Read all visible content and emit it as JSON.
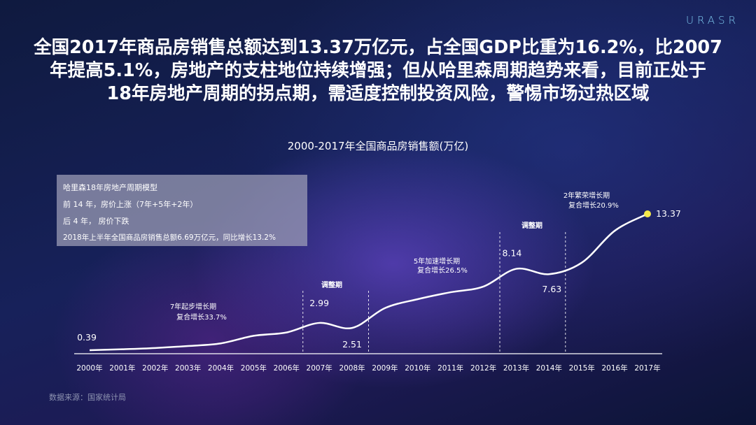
{
  "brand": "URASR",
  "headline": {
    "lines": [
      "全国2017年商品房销售总额达到13.37万亿元，占全国GDP比重为16.2%，比2007",
      "年提高5.1%，房地产的支柱地位持续增强；但从哈里森周期趋势来看，目前正处于",
      "18年房地产周期的拐点期，需适度控制投资风险，警惕市场过热区域"
    ]
  },
  "infobox": {
    "line1": "哈里森18年房地产周期模型",
    "line2": "前 14 年，房价上涨（7年+5年+2年）",
    "line3": "后 4 年， 房价下跌",
    "line4": "2018年上半年全国商品房销售总额6.69万亿元，同比增长13.2%"
  },
  "source": "数据来源：国家统计局",
  "colors": {
    "line": "#ffffff",
    "highlight_point": "#f5e94a",
    "axis": "#ffffff"
  },
  "chart_data": {
    "type": "line",
    "title": "2000-2017年全国商品房销售额(万亿)",
    "categories": [
      "2000年",
      "2001年",
      "2002年",
      "2003年",
      "2004年",
      "2005年",
      "2006年",
      "2007年",
      "2008年",
      "2009年",
      "2010年",
      "2011年",
      "2012年",
      "2013年",
      "2014年",
      "2015年",
      "2016年",
      "2017年"
    ],
    "values": [
      0.39,
      0.48,
      0.6,
      0.79,
      1.04,
      1.76,
      2.08,
      2.99,
      2.51,
      4.4,
      5.25,
      5.91,
      6.45,
      8.14,
      7.63,
      8.73,
      11.76,
      13.37
    ],
    "labeled_points": [
      {
        "year": "2000年",
        "label": "0.39"
      },
      {
        "year": "2007年",
        "label": "2.99"
      },
      {
        "year": "2008年",
        "label": "2.51"
      },
      {
        "year": "2013年",
        "label": "8.14"
      },
      {
        "year": "2014年",
        "label": "7.63"
      },
      {
        "year": "2017年",
        "label": "13.37"
      }
    ],
    "annotations": [
      {
        "lines": [
          "7年起步增长期",
          "复合增长33.7%"
        ]
      },
      {
        "lines": [
          "5年加速增长期",
          "复合增长26.5%"
        ]
      },
      {
        "lines": [
          "2年繁荣增长期",
          "复合增长20.9%"
        ]
      },
      {
        "label": "调整期"
      },
      {
        "label": "调整期"
      }
    ],
    "ylim": [
      0,
      14
    ],
    "grid": false,
    "xlabel": "",
    "ylabel": ""
  }
}
